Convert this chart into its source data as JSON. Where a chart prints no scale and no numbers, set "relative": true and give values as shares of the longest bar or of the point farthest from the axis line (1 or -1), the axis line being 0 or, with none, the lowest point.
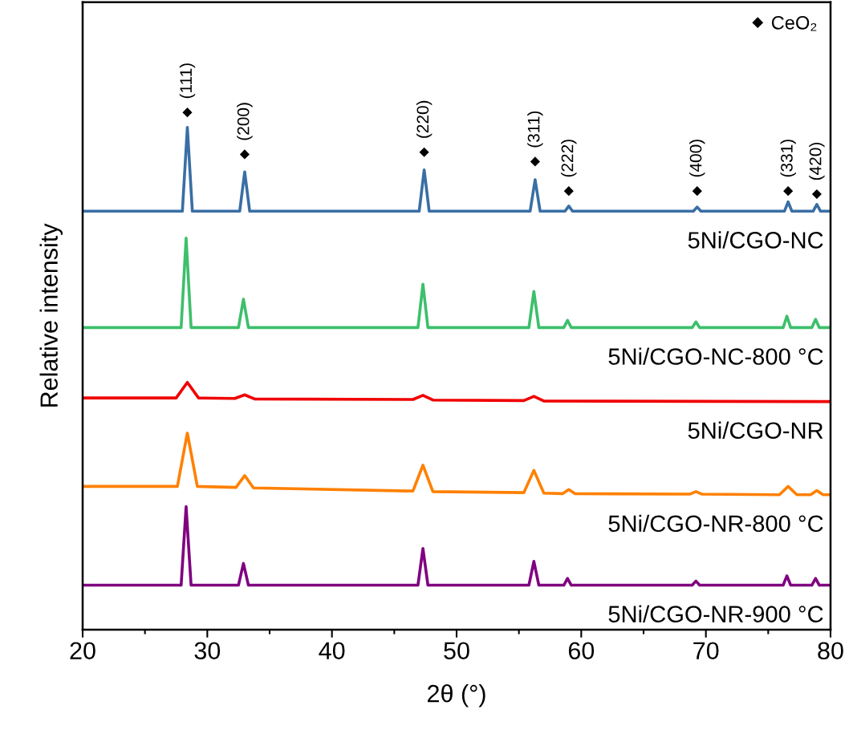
{
  "chart_data": {
    "type": "line",
    "relative": true,
    "xlabel": "2θ (°)",
    "ylabel": "Relative intensity",
    "xlim": [
      20,
      80
    ],
    "xticks": [
      20,
      30,
      40,
      50,
      60,
      70,
      80
    ],
    "tick_labels": "x",
    "legend": "top right",
    "series": [
      {
        "name": "5Ni/CGO-NC",
        "color": "#3a6ea5",
        "x": [
          20,
          28.0,
          28.4,
          28.8,
          32.6,
          33.0,
          33.4,
          47.0,
          47.4,
          47.8,
          55.9,
          56.3,
          56.7,
          58.7,
          59.0,
          59.3,
          69.0,
          69.3,
          69.6,
          76.3,
          76.6,
          76.9,
          78.6,
          78.9,
          79.2,
          80
        ],
        "values": [
          0.809,
          0.809,
          0.971,
          0.809,
          0.809,
          0.885,
          0.809,
          0.809,
          0.889,
          0.809,
          0.809,
          0.87,
          0.809,
          0.809,
          0.819,
          0.809,
          0.809,
          0.817,
          0.809,
          0.809,
          0.827,
          0.809,
          0.809,
          0.822,
          0.809,
          0.809
        ]
      },
      {
        "name": "5Ni/CGO-NC-800 °C",
        "color": "#3dbf6b",
        "x": [
          20,
          27.9,
          28.3,
          28.7,
          32.5,
          32.9,
          33.3,
          46.9,
          47.3,
          47.7,
          55.8,
          56.2,
          56.6,
          58.6,
          58.9,
          59.2,
          68.9,
          69.2,
          69.5,
          76.2,
          76.5,
          76.8,
          78.5,
          78.8,
          79.1,
          80
        ],
        "values": [
          0.584,
          0.584,
          0.757,
          0.584,
          0.584,
          0.639,
          0.584,
          0.584,
          0.668,
          0.584,
          0.584,
          0.654,
          0.584,
          0.584,
          0.598,
          0.584,
          0.584,
          0.595,
          0.584,
          0.584,
          0.606,
          0.584,
          0.584,
          0.6,
          0.584,
          0.584
        ]
      },
      {
        "name": "5Ni/CGO-NR",
        "color": "#f00000",
        "x": [
          20,
          27.5,
          28.4,
          29.3,
          32.2,
          33.0,
          33.8,
          46.5,
          47.3,
          48.1,
          55.4,
          56.2,
          57.0,
          80
        ],
        "values": [
          0.448,
          0.448,
          0.478,
          0.448,
          0.447,
          0.454,
          0.446,
          0.445,
          0.453,
          0.444,
          0.443,
          0.451,
          0.442,
          0.441
        ]
      },
      {
        "name": "5Ni/CGO-NR-800 °C",
        "color": "#ff8000",
        "x": [
          20,
          27.6,
          28.4,
          29.2,
          32.3,
          33.0,
          33.7,
          46.5,
          47.3,
          48.1,
          55.4,
          56.2,
          57.0,
          58.5,
          59.0,
          59.5,
          68.7,
          69.2,
          69.7,
          75.9,
          76.6,
          77.3,
          78.4,
          78.9,
          79.4,
          80
        ],
        "values": [
          0.277,
          0.277,
          0.38,
          0.277,
          0.275,
          0.298,
          0.274,
          0.268,
          0.318,
          0.267,
          0.265,
          0.308,
          0.264,
          0.263,
          0.271,
          0.263,
          0.262,
          0.267,
          0.262,
          0.261,
          0.277,
          0.261,
          0.261,
          0.269,
          0.261,
          0.261
        ]
      },
      {
        "name": "5Ni/CGO-NR-900 °C",
        "color": "#800080",
        "x": [
          20,
          27.9,
          28.3,
          28.7,
          32.5,
          32.9,
          33.3,
          46.9,
          47.3,
          47.7,
          55.8,
          56.2,
          56.6,
          58.6,
          58.9,
          59.2,
          68.9,
          69.2,
          69.5,
          76.2,
          76.5,
          76.8,
          78.5,
          78.8,
          79.1,
          80
        ],
        "values": [
          0.086,
          0.086,
          0.238,
          0.086,
          0.086,
          0.128,
          0.086,
          0.086,
          0.157,
          0.086,
          0.086,
          0.132,
          0.086,
          0.086,
          0.099,
          0.086,
          0.086,
          0.094,
          0.086,
          0.086,
          0.104,
          0.086,
          0.086,
          0.099,
          0.086,
          0.086
        ]
      },
      {
        "name": "CeO₂",
        "type": "scatter",
        "marker": "diamond",
        "color": "#000000",
        "x": [
          28.4,
          33.0,
          47.4,
          56.3,
          59.0,
          69.3,
          76.6,
          78.9
        ],
        "values": [
          1.0,
          0.919,
          0.923,
          0.905,
          0.848,
          0.848,
          0.848,
          0.842
        ]
      }
    ],
    "annotations": [
      {
        "text": "(111)",
        "x": 28.4,
        "y": 1.0
      },
      {
        "text": "(200)",
        "x": 33.0,
        "y": 0.919
      },
      {
        "text": "(220)",
        "x": 47.4,
        "y": 0.923
      },
      {
        "text": "(311)",
        "x": 56.3,
        "y": 0.905
      },
      {
        "text": "(222)",
        "x": 59.0,
        "y": 0.848
      },
      {
        "text": "(400)",
        "x": 69.3,
        "y": 0.848
      },
      {
        "text": "(331)",
        "x": 76.6,
        "y": 0.848
      },
      {
        "text": "(420)",
        "x": 78.9,
        "y": 0.842
      }
    ]
  }
}
